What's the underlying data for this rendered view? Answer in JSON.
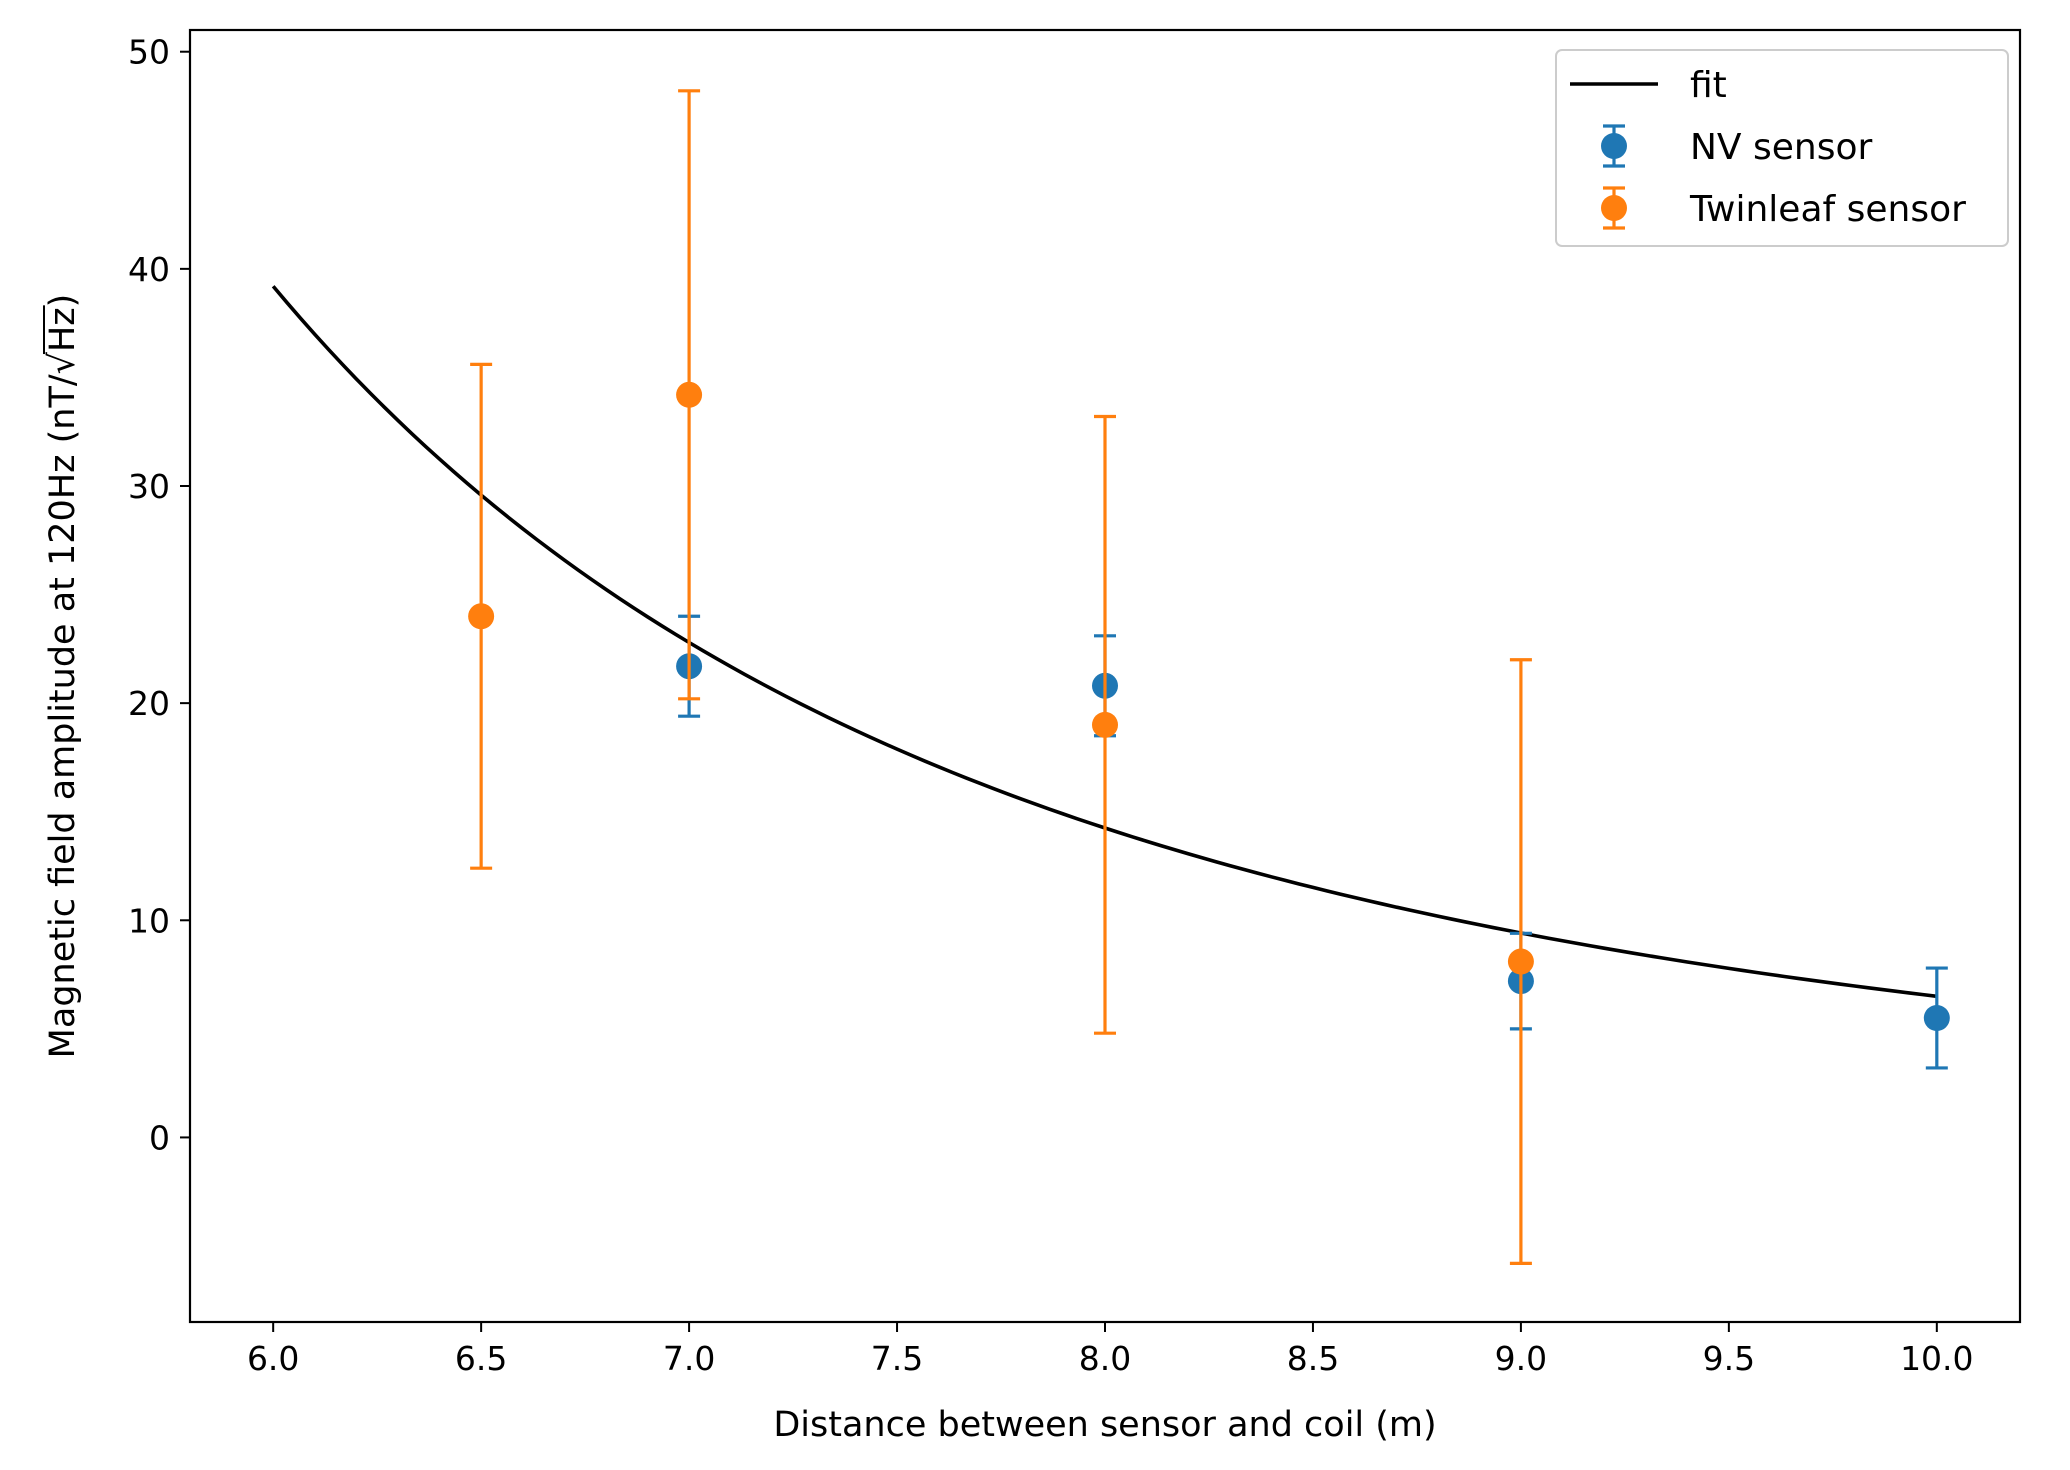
{
  "chart_data": {
    "type": "scatter",
    "title": "",
    "xlabel": "Distance between sensor and coil (m)",
    "ylabel_prefix": "Magnetic field amplitude at 120Hz (nT/",
    "ylabel_radical": "√",
    "ylabel_radicand": "Hz",
    "ylabel_suffix": ")",
    "xlim": [
      5.8,
      10.2
    ],
    "ylim": [
      -8.5,
      51
    ],
    "xticks": [
      6.0,
      6.5,
      7.0,
      7.5,
      8.0,
      8.5,
      9.0,
      9.5,
      10.0
    ],
    "xtick_labels": [
      "6.0",
      "6.5",
      "7.0",
      "7.5",
      "8.0",
      "8.5",
      "9.0",
      "9.5",
      "10.0"
    ],
    "yticks": [
      0,
      10,
      20,
      30,
      40,
      50
    ],
    "ytick_labels": [
      "0",
      "10",
      "20",
      "30",
      "40",
      "50"
    ],
    "legend_position": "top-right",
    "series": [
      {
        "name": "fit",
        "kind": "line",
        "color": "#000000",
        "model": "power-law",
        "x_range": [
          6.0,
          10.0
        ],
        "y_at_start": 39.2,
        "y_at_end": 6.5
      },
      {
        "name": "NV sensor",
        "kind": "errorbar",
        "color": "#1f77b4",
        "points": [
          {
            "x": 7.0,
            "y": 21.7,
            "yerr": 2.3
          },
          {
            "x": 8.0,
            "y": 20.8,
            "yerr": 2.3
          },
          {
            "x": 9.0,
            "y": 7.2,
            "yerr": 2.2
          },
          {
            "x": 10.0,
            "y": 5.5,
            "yerr": 2.3
          }
        ]
      },
      {
        "name": "Twinleaf sensor",
        "kind": "errorbar",
        "color": "#ff7f0e",
        "points": [
          {
            "x": 6.5,
            "y": 24.0,
            "yerr": 11.6
          },
          {
            "x": 7.0,
            "y": 34.2,
            "yerr": 14.0
          },
          {
            "x": 8.0,
            "y": 19.0,
            "yerr": 14.2
          },
          {
            "x": 9.0,
            "y": 8.1,
            "yerr": 13.9
          }
        ]
      }
    ]
  }
}
